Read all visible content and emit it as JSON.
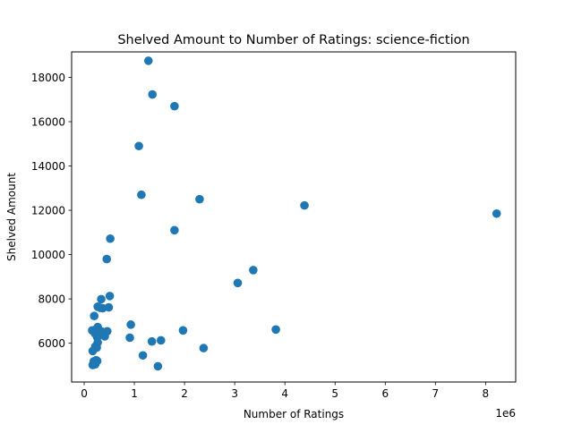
{
  "chart_data": {
    "type": "scatter",
    "title": "Shelved Amount to Number of Ratings: science-fiction",
    "xlabel": "Number of Ratings",
    "ylabel": "Shelved Amount",
    "x_offset_label": "1e6",
    "xlim": [
      -0.25,
      8.6
    ],
    "ylim": [
      4250,
      19150
    ],
    "x_ticks": [
      0,
      1,
      2,
      3,
      4,
      5,
      6,
      7,
      8
    ],
    "x_tick_labels": [
      "0",
      "1",
      "2",
      "3",
      "4",
      "5",
      "6",
      "7",
      "8"
    ],
    "y_ticks": [
      6000,
      8000,
      10000,
      12000,
      14000,
      16000,
      18000
    ],
    "y_tick_labels": [
      "6000",
      "8000",
      "10000",
      "12000",
      "14000",
      "16000",
      "18000"
    ],
    "grid": false,
    "marker_color": "#1f77b4",
    "series": [
      {
        "points": [
          [
            1.28,
            18750
          ],
          [
            1.36,
            17230
          ],
          [
            1.8,
            16700
          ],
          [
            1.09,
            14900
          ],
          [
            1.14,
            12700
          ],
          [
            2.3,
            12500
          ],
          [
            4.39,
            12220
          ],
          [
            8.22,
            11850
          ],
          [
            1.8,
            11100
          ],
          [
            0.52,
            10720
          ],
          [
            0.45,
            9800
          ],
          [
            3.37,
            9300
          ],
          [
            3.06,
            8720
          ],
          [
            0.51,
            8130
          ],
          [
            0.34,
            7990
          ],
          [
            0.27,
            7650
          ],
          [
            0.32,
            7600
          ],
          [
            0.49,
            7620
          ],
          [
            0.37,
            7580
          ],
          [
            0.2,
            7230
          ],
          [
            0.93,
            6840
          ],
          [
            0.27,
            6730
          ],
          [
            0.25,
            6650
          ],
          [
            0.16,
            6580
          ],
          [
            0.35,
            6530
          ],
          [
            0.4,
            6480
          ],
          [
            0.46,
            6540
          ],
          [
            3.82,
            6620
          ],
          [
            1.97,
            6580
          ],
          [
            0.22,
            6430
          ],
          [
            0.3,
            6380
          ],
          [
            0.26,
            6270
          ],
          [
            0.41,
            6310
          ],
          [
            0.91,
            6250
          ],
          [
            1.53,
            6130
          ],
          [
            1.35,
            6080
          ],
          [
            0.27,
            6030
          ],
          [
            0.22,
            5850
          ],
          [
            0.25,
            5800
          ],
          [
            0.17,
            5650
          ],
          [
            2.38,
            5780
          ],
          [
            1.17,
            5450
          ],
          [
            0.19,
            5180
          ],
          [
            0.24,
            5230
          ],
          [
            0.26,
            5200
          ],
          [
            0.17,
            5020
          ],
          [
            0.22,
            5050
          ],
          [
            1.47,
            4960
          ]
        ]
      }
    ]
  }
}
